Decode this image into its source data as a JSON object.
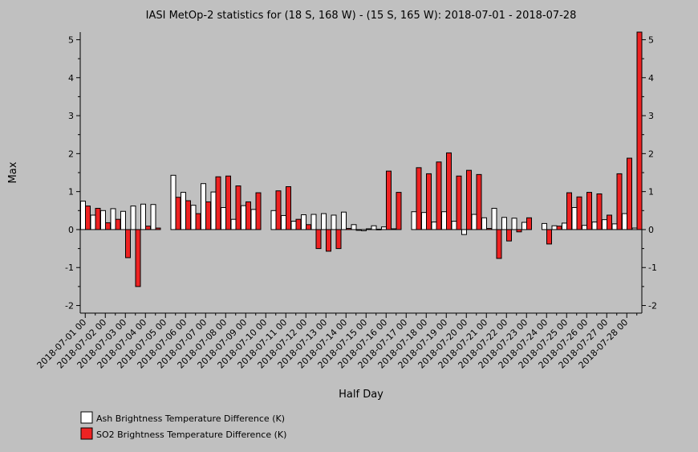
{
  "chart_data": {
    "type": "bar",
    "title": "IASI MetOp-2 statistics for (18 S, 168 W) - (15 S, 165 W): 2018-07-01 - 2018-07-28",
    "xlabel": "Half Day",
    "ylabel": "Max",
    "ylim": [
      -2.2,
      5.2
    ],
    "yticks": [
      -2,
      -1,
      0,
      1,
      2,
      3,
      4,
      5
    ],
    "grid": false,
    "legend_position": "bottom-left",
    "categories": [
      "2018-07-01 00",
      "2018-07-01 12",
      "2018-07-02 00",
      "2018-07-02 12",
      "2018-07-03 00",
      "2018-07-03 12",
      "2018-07-04 00",
      "2018-07-04 12",
      "2018-07-05 00",
      "2018-07-05 12",
      "2018-07-06 00",
      "2018-07-06 12",
      "2018-07-07 00",
      "2018-07-07 12",
      "2018-07-08 00",
      "2018-07-08 12",
      "2018-07-09 00",
      "2018-07-09 12",
      "2018-07-10 00",
      "2018-07-10 12",
      "2018-07-11 00",
      "2018-07-11 12",
      "2018-07-12 00",
      "2018-07-12 12",
      "2018-07-13 00",
      "2018-07-13 12",
      "2018-07-14 00",
      "2018-07-14 12",
      "2018-07-15 00",
      "2018-07-15 12",
      "2018-07-16 00",
      "2018-07-16 12",
      "2018-07-17 00",
      "2018-07-17 12",
      "2018-07-18 00",
      "2018-07-18 12",
      "2018-07-19 00",
      "2018-07-19 12",
      "2018-07-20 00",
      "2018-07-20 12",
      "2018-07-21 00",
      "2018-07-21 12",
      "2018-07-22 00",
      "2018-07-22 12",
      "2018-07-23 00",
      "2018-07-23 12",
      "2018-07-24 00",
      "2018-07-24 12",
      "2018-07-25 00",
      "2018-07-25 12",
      "2018-07-26 00",
      "2018-07-26 12",
      "2018-07-27 00",
      "2018-07-27 12",
      "2018-07-28 00",
      "2018-07-28 12"
    ],
    "tick_labels": [
      "2018-07-01 00",
      "2018-07-02 00",
      "2018-07-03 00",
      "2018-07-04 00",
      "2018-07-05 00",
      "2018-07-06 00",
      "2018-07-07 00",
      "2018-07-08 00",
      "2018-07-09 00",
      "2018-07-10 00",
      "2018-07-11 00",
      "2018-07-12 00",
      "2018-07-13 00",
      "2018-07-14 00",
      "2018-07-15 00",
      "2018-07-16 00",
      "2018-07-17 00",
      "2018-07-18 00",
      "2018-07-19 00",
      "2018-07-20 00",
      "2018-07-21 00",
      "2018-07-22 00",
      "2018-07-23 00",
      "2018-07-24 00",
      "2018-07-25 00",
      "2018-07-26 00",
      "2018-07-27 00",
      "2018-07-28 00"
    ],
    "series": [
      {
        "name": "Ash Brightness Temperature Difference (K)",
        "color": "#ffffff",
        "values": [
          0.75,
          0.38,
          0.5,
          0.55,
          0.48,
          0.62,
          0.67,
          0.66,
          null,
          1.43,
          0.98,
          0.64,
          1.21,
          0.99,
          0.58,
          0.27,
          0.63,
          0.53,
          null,
          0.5,
          0.37,
          0.22,
          0.39,
          0.4,
          0.42,
          0.38,
          0.46,
          0.13,
          -0.03,
          0.1,
          0.07,
          0.02,
          null,
          0.47,
          0.45,
          0.2,
          0.47,
          0.22,
          -0.13,
          0.4,
          0.31,
          0.56,
          0.32,
          0.3,
          0.19,
          null,
          0.16,
          0.1,
          0.17,
          0.58,
          0.11,
          0.2,
          0.26,
          0.15,
          0.42,
          0.04
        ]
      },
      {
        "name": "SO2 Brightness Temperature Difference (K)",
        "color": "#ee2222",
        "values": [
          0.62,
          0.56,
          0.18,
          0.27,
          -0.74,
          -1.5,
          0.09,
          0.04,
          null,
          0.85,
          0.76,
          0.42,
          0.73,
          1.39,
          1.41,
          1.15,
          0.73,
          0.97,
          null,
          1.02,
          1.13,
          0.27,
          0.13,
          -0.5,
          -0.57,
          -0.5,
          0.03,
          -0.02,
          0.02,
          0.01,
          1.54,
          0.98,
          null,
          1.63,
          1.47,
          1.78,
          2.02,
          1.41,
          1.56,
          1.45,
          0.03,
          -0.76,
          -0.3,
          -0.06,
          0.31,
          null,
          -0.38,
          0.09,
          0.97,
          0.86,
          0.98,
          0.94,
          0.38,
          1.47,
          1.88,
          5.2
        ]
      }
    ]
  }
}
